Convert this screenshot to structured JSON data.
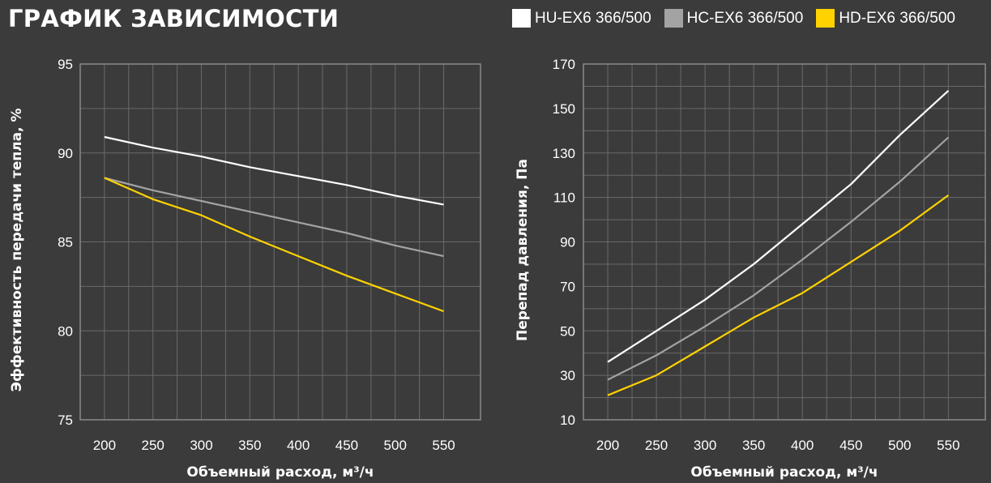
{
  "title": "ГРАФИК ЗАВИСИМОСТИ",
  "legend": [
    {
      "label": "HU-EX6 366/500",
      "color": "#ffffff"
    },
    {
      "label": "HC-EX6 366/500",
      "color": "#a3a3a3"
    },
    {
      "label": "HD-EX6 366/500",
      "color": "#ffd200"
    }
  ],
  "colors": {
    "background": "#3b3b3b",
    "grid": "#6a6a6a",
    "frame": "#8a8a8a"
  },
  "chart_data": [
    {
      "type": "line",
      "ylabel": "Эффективность передачи тепла, %",
      "xlabel": "Объемный расход, м³/ч",
      "x_ticks": [
        "200",
        "250",
        "300",
        "350",
        "400",
        "450",
        "500",
        "550"
      ],
      "y_ticks": [
        "95",
        "90",
        "85",
        "80",
        "75"
      ],
      "xlim": [
        175,
        588
      ],
      "ylim": [
        75,
        95
      ],
      "grid": true,
      "x": [
        200,
        250,
        300,
        350,
        400,
        450,
        500,
        550
      ],
      "series": [
        {
          "name": "HU-EX6 366/500",
          "color": "#ffffff",
          "values": [
            90.9,
            90.3,
            89.8,
            89.2,
            88.7,
            88.2,
            87.6,
            87.1
          ]
        },
        {
          "name": "HC-EX6 366/500",
          "color": "#a3a3a3",
          "values": [
            88.6,
            87.9,
            87.3,
            86.7,
            86.1,
            85.5,
            84.8,
            84.2
          ]
        },
        {
          "name": "HD-EX6 366/500",
          "color": "#ffd200",
          "values": [
            88.6,
            87.4,
            86.5,
            85.3,
            84.2,
            83.1,
            82.1,
            81.1
          ]
        }
      ]
    },
    {
      "type": "line",
      "ylabel": "Перепад давления, Па",
      "xlabel": "Объемный расход, м³/ч",
      "x_ticks": [
        "200",
        "250",
        "300",
        "350",
        "400",
        "450",
        "500",
        "550"
      ],
      "y_ticks": [
        "170",
        "150",
        "130",
        "110",
        "90",
        "70",
        "50",
        "30",
        "10"
      ],
      "xlim": [
        175,
        588
      ],
      "ylim": [
        10,
        170
      ],
      "grid": true,
      "x": [
        200,
        250,
        300,
        350,
        400,
        450,
        500,
        550
      ],
      "series": [
        {
          "name": "HU-EX6 366/500",
          "color": "#ffffff",
          "values": [
            36,
            50,
            64,
            80,
            98,
            116,
            138,
            158
          ]
        },
        {
          "name": "HC-EX6 366/500",
          "color": "#a3a3a3",
          "values": [
            28,
            39,
            52,
            66,
            82,
            99,
            117,
            137
          ]
        },
        {
          "name": "HD-EX6 366/500",
          "color": "#ffd200",
          "values": [
            21,
            30,
            43,
            56,
            67,
            81,
            95,
            111
          ]
        }
      ]
    }
  ]
}
